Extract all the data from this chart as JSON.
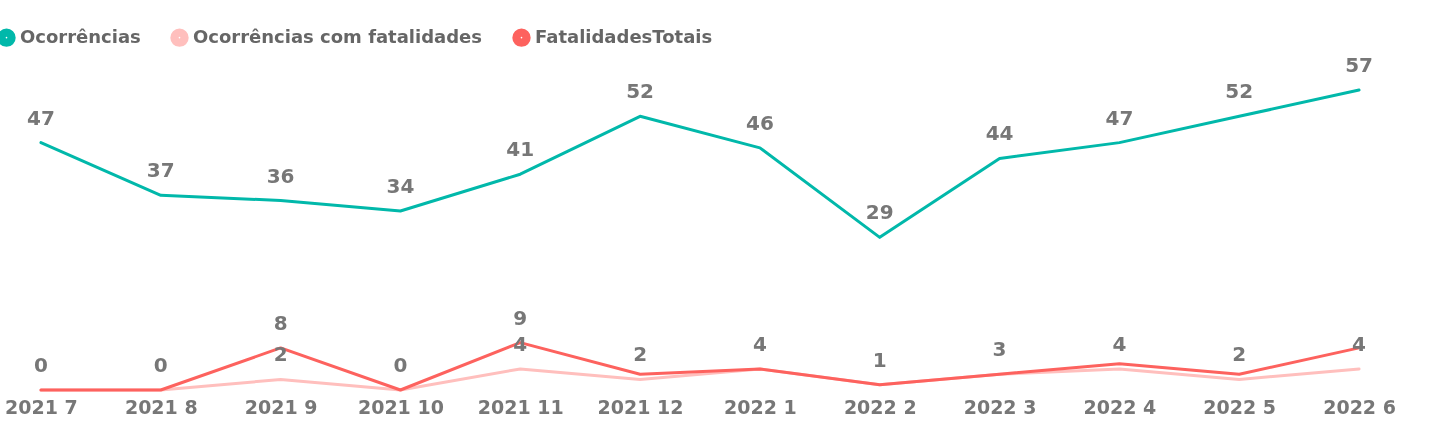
{
  "chart_data": {
    "type": "line",
    "categories": [
      "2021 7",
      "2021 8",
      "2021 9",
      "2021 10",
      "2021 11",
      "2021 12",
      "2022 1",
      "2022 2",
      "2022 3",
      "2022 4",
      "2022 5",
      "2022 6"
    ],
    "series": [
      {
        "name": "Ocorrências",
        "color": "#01b8aa",
        "values": [
          47,
          37,
          36,
          34,
          41,
          52,
          46,
          29,
          44,
          47,
          52,
          57
        ],
        "value_labels": [
          "47",
          "37",
          "36",
          "34",
          "41",
          "52",
          "46",
          "29",
          "44",
          "47",
          "52",
          "57"
        ]
      },
      {
        "name": "Ocorrências com fatalidades",
        "color": "#ffbfbd",
        "values": [
          0,
          0,
          2,
          0,
          4,
          2,
          4,
          1,
          3,
          4,
          2,
          4
        ],
        "value_labels": [
          null,
          null,
          "2",
          null,
          "4",
          "2",
          null,
          null,
          null,
          "4",
          "2",
          "4"
        ]
      },
      {
        "name": "FatalidadesTotais",
        "color": "#fd625e",
        "values": [
          0,
          0,
          8,
          0,
          9,
          3,
          4,
          1,
          3,
          5,
          3,
          8
        ],
        "value_labels": [
          "0",
          "0",
          "8",
          "0",
          "9",
          null,
          "4",
          "1",
          "3",
          null,
          null,
          null
        ]
      }
    ],
    "legend": "top left",
    "tick_labels": "x"
  }
}
